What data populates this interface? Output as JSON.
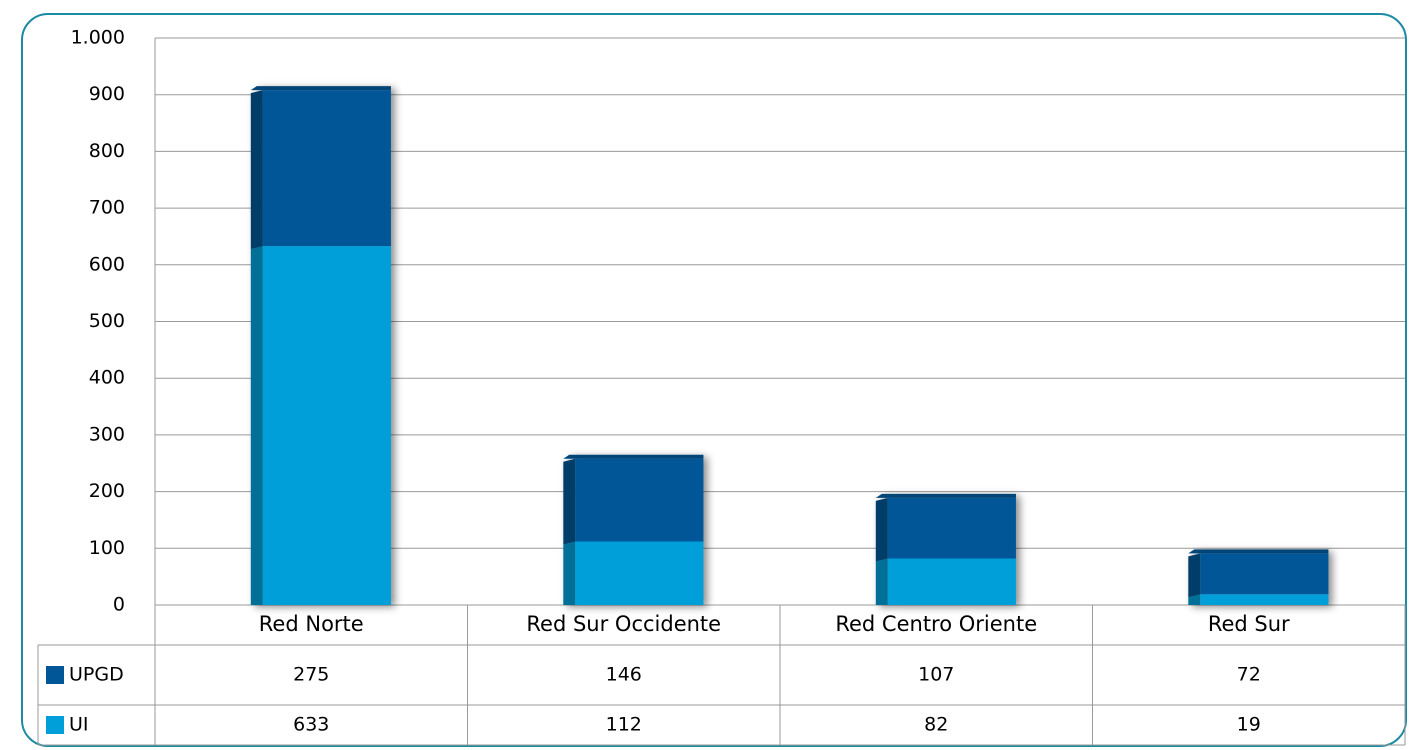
{
  "chart_data": {
    "type": "bar",
    "stacked": true,
    "categories": [
      "Red Norte",
      "Red Sur Occidente",
      "Red Centro Oriente",
      "Red Sur"
    ],
    "series": [
      {
        "name": "UPGD",
        "color": "#005696",
        "values": [
          275,
          146,
          107,
          72
        ]
      },
      {
        "name": "UI",
        "color": "#009fd9",
        "values": [
          633,
          112,
          82,
          19
        ]
      }
    ],
    "ylim": [
      0,
      1000
    ],
    "yticks": [
      0,
      100,
      200,
      300,
      400,
      500,
      600,
      700,
      800,
      900,
      {
        "value": 1000,
        "label": "1.000"
      }
    ],
    "grid": true,
    "legend": "table"
  }
}
